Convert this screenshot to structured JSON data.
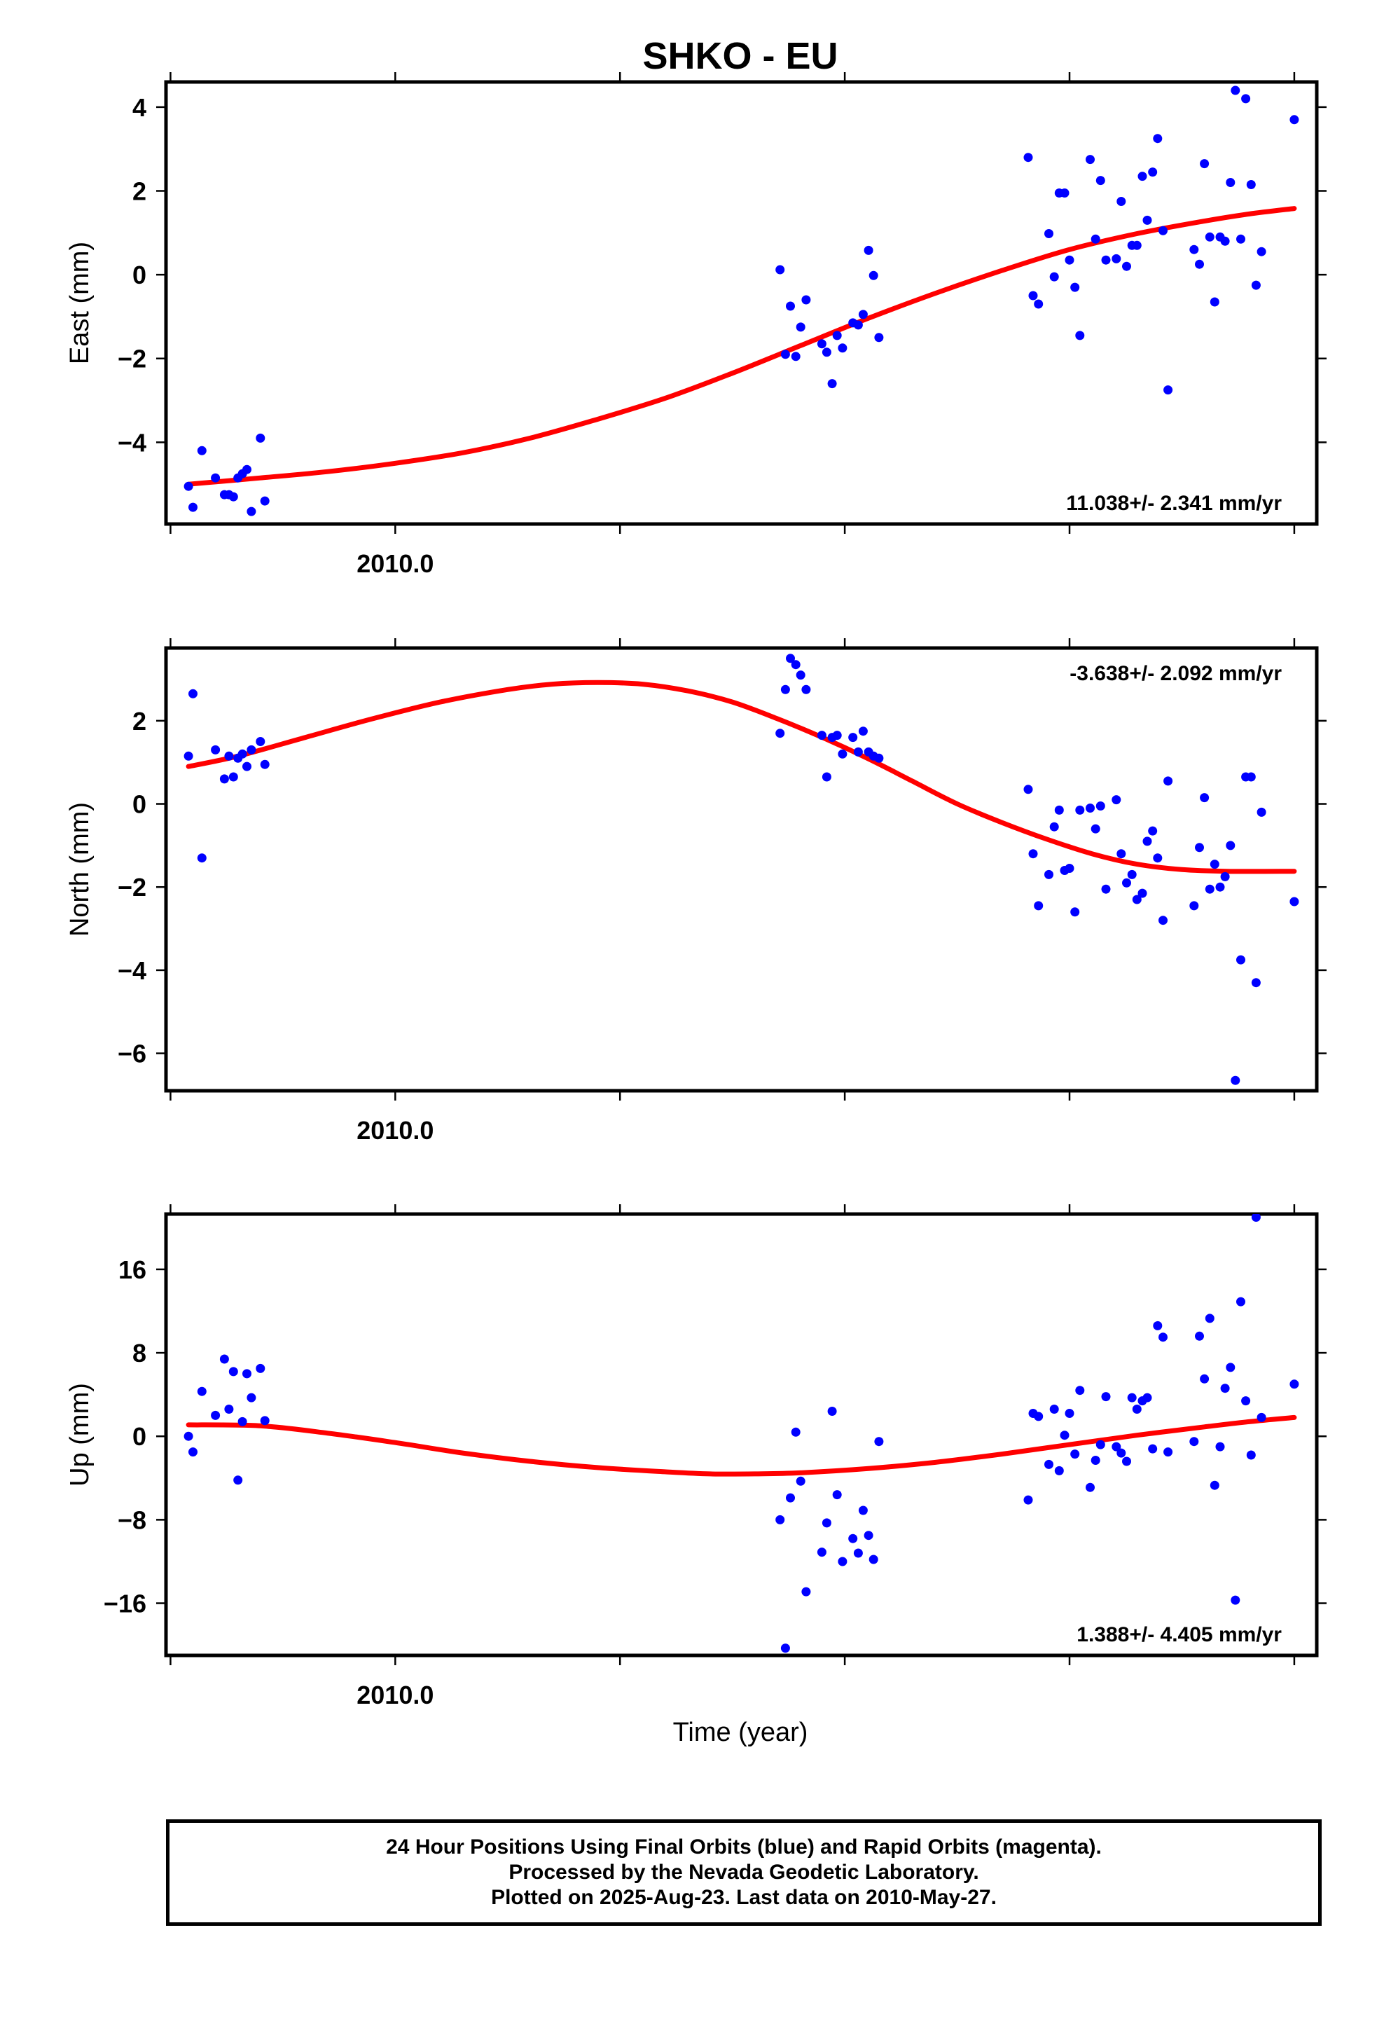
{
  "colors": {
    "points": "#0000ff",
    "fit": "#ff0000",
    "frame": "#000000"
  },
  "footer": {
    "lines": [
      "24 Hour Positions Using Final Orbits (blue) and Rapid Orbits (magenta).",
      "Processed by the Nevada Geodetic Laboratory.",
      "Plotted on 2025-Aug-23. Last data on 2010-May-27."
    ]
  },
  "chart_data": {
    "type": "scatter",
    "title": "SHKO - EU",
    "xlabel": "Time (year)",
    "x_tick_label": "2010.0",
    "x_tick_label_value": 2010.0,
    "xlim": [
      2009.949,
      2010.205
    ],
    "x_major_ticks": [
      2009.95,
      2010.0,
      2010.05,
      2010.1,
      2010.15,
      2010.2
    ],
    "grid": false,
    "panels": [
      {
        "id": "east",
        "ylabel": "East (mm)",
        "ylim": [
          -5.95,
          4.6
        ],
        "yticks": [
          -4,
          -2,
          0,
          2,
          4
        ],
        "ytick_labels": [
          "−4",
          "−2",
          "0",
          "2",
          "4"
        ],
        "rate_text": "11.038+/- 2.341 mm/yr",
        "rate_position": "bottom-right",
        "points": [
          [
            2009.954,
            -5.05
          ],
          [
            2009.955,
            -5.55
          ],
          [
            2009.957,
            -4.2
          ],
          [
            2009.96,
            -4.85
          ],
          [
            2009.962,
            -5.25
          ],
          [
            2009.963,
            -5.25
          ],
          [
            2009.964,
            -5.3
          ],
          [
            2009.965,
            -4.85
          ],
          [
            2009.966,
            -4.75
          ],
          [
            2009.967,
            -4.65
          ],
          [
            2009.968,
            -5.65
          ],
          [
            2009.97,
            -3.9
          ],
          [
            2009.971,
            -5.4
          ],
          [
            2010.0856,
            0.12
          ],
          [
            2010.0868,
            -1.9
          ],
          [
            2010.0879,
            -0.75
          ],
          [
            2010.0891,
            -1.95
          ],
          [
            2010.0902,
            -1.25
          ],
          [
            2010.0914,
            -0.6
          ],
          [
            2010.0949,
            -1.65
          ],
          [
            2010.096,
            -1.85
          ],
          [
            2010.0972,
            -2.6
          ],
          [
            2010.0983,
            -1.45
          ],
          [
            2010.0995,
            -1.75
          ],
          [
            2010.1018,
            -1.15
          ],
          [
            2010.103,
            -1.2
          ],
          [
            2010.1041,
            -0.95
          ],
          [
            2010.1053,
            0.58
          ],
          [
            2010.1064,
            -0.02
          ],
          [
            2010.1076,
            -1.5
          ],
          [
            2010.1408,
            2.8
          ],
          [
            2010.1419,
            -0.5
          ],
          [
            2010.1431,
            -0.7
          ],
          [
            2010.1454,
            0.98
          ],
          [
            2010.1466,
            -0.05
          ],
          [
            2010.1477,
            1.95
          ],
          [
            2010.1489,
            1.95
          ],
          [
            2010.15,
            0.35
          ],
          [
            2010.1512,
            -0.3
          ],
          [
            2010.1523,
            -1.45
          ],
          [
            2010.1546,
            2.75
          ],
          [
            2010.1558,
            0.85
          ],
          [
            2010.1569,
            2.25
          ],
          [
            2010.1581,
            0.35
          ],
          [
            2010.1604,
            0.38
          ],
          [
            2010.1615,
            1.75
          ],
          [
            2010.1627,
            0.2
          ],
          [
            2010.1639,
            0.7
          ],
          [
            2010.165,
            0.7
          ],
          [
            2010.1662,
            2.35
          ],
          [
            2010.1673,
            1.3
          ],
          [
            2010.1685,
            2.45
          ],
          [
            2010.1696,
            3.25
          ],
          [
            2010.1708,
            1.05
          ],
          [
            2010.1719,
            -2.75
          ],
          [
            2010.1777,
            0.6
          ],
          [
            2010.1789,
            0.25
          ],
          [
            2010.18,
            2.65
          ],
          [
            2010.1812,
            0.9
          ],
          [
            2010.1823,
            -0.65
          ],
          [
            2010.1835,
            0.9
          ],
          [
            2010.1846,
            0.8
          ],
          [
            2010.1858,
            2.2
          ],
          [
            2010.1869,
            4.4
          ],
          [
            2010.1881,
            0.85
          ],
          [
            2010.1892,
            4.2
          ],
          [
            2010.1904,
            2.15
          ],
          [
            2010.1915,
            -0.25
          ],
          [
            2010.1927,
            0.55
          ],
          [
            2010.2,
            3.7
          ]
        ],
        "fit": [
          [
            2009.954,
            -5.0
          ],
          [
            2009.97,
            -4.85
          ],
          [
            2009.985,
            -4.7
          ],
          [
            2010.0,
            -4.5
          ],
          [
            2010.015,
            -4.25
          ],
          [
            2010.03,
            -3.9
          ],
          [
            2010.045,
            -3.45
          ],
          [
            2010.06,
            -2.95
          ],
          [
            2010.075,
            -2.35
          ],
          [
            2010.09,
            -1.7
          ],
          [
            2010.105,
            -1.05
          ],
          [
            2010.12,
            -0.45
          ],
          [
            2010.135,
            0.1
          ],
          [
            2010.15,
            0.6
          ],
          [
            2010.165,
            0.98
          ],
          [
            2010.18,
            1.28
          ],
          [
            2010.19,
            1.45
          ],
          [
            2010.2,
            1.58
          ]
        ]
      },
      {
        "id": "north",
        "ylabel": "North (mm)",
        "ylim": [
          -6.9,
          3.75
        ],
        "yticks": [
          -6,
          -4,
          -2,
          0,
          2
        ],
        "ytick_labels": [
          "−6",
          "−4",
          "−2",
          "0",
          "2"
        ],
        "rate_text": "-3.638+/- 2.092 mm/yr",
        "rate_position": "top-right",
        "points": [
          [
            2009.954,
            1.15
          ],
          [
            2009.955,
            2.65
          ],
          [
            2009.957,
            -1.3
          ],
          [
            2009.96,
            1.3
          ],
          [
            2009.962,
            0.6
          ],
          [
            2009.963,
            1.15
          ],
          [
            2009.964,
            0.65
          ],
          [
            2009.965,
            1.1
          ],
          [
            2009.966,
            1.2
          ],
          [
            2009.967,
            0.9
          ],
          [
            2009.968,
            1.3
          ],
          [
            2009.97,
            1.5
          ],
          [
            2009.971,
            0.95
          ],
          [
            2010.0856,
            1.7
          ],
          [
            2010.0868,
            2.75
          ],
          [
            2010.0879,
            3.5
          ],
          [
            2010.0891,
            3.35
          ],
          [
            2010.0902,
            3.1
          ],
          [
            2010.0914,
            2.75
          ],
          [
            2010.0949,
            1.65
          ],
          [
            2010.096,
            0.65
          ],
          [
            2010.0972,
            1.6
          ],
          [
            2010.0983,
            1.65
          ],
          [
            2010.0995,
            1.2
          ],
          [
            2010.1018,
            1.6
          ],
          [
            2010.103,
            1.25
          ],
          [
            2010.1041,
            1.75
          ],
          [
            2010.1053,
            1.25
          ],
          [
            2010.1064,
            1.15
          ],
          [
            2010.1076,
            1.1
          ],
          [
            2010.1408,
            0.35
          ],
          [
            2010.1419,
            -1.2
          ],
          [
            2010.1431,
            -2.45
          ],
          [
            2010.1454,
            -1.7
          ],
          [
            2010.1466,
            -0.55
          ],
          [
            2010.1477,
            -0.15
          ],
          [
            2010.1489,
            -1.6
          ],
          [
            2010.15,
            -1.55
          ],
          [
            2010.1512,
            -2.6
          ],
          [
            2010.1523,
            -0.15
          ],
          [
            2010.1546,
            -0.1
          ],
          [
            2010.1558,
            -0.6
          ],
          [
            2010.1569,
            -0.05
          ],
          [
            2010.1581,
            -2.05
          ],
          [
            2010.1604,
            0.1
          ],
          [
            2010.1615,
            -1.2
          ],
          [
            2010.1627,
            -1.9
          ],
          [
            2010.1639,
            -1.7
          ],
          [
            2010.165,
            -2.3
          ],
          [
            2010.1662,
            -2.15
          ],
          [
            2010.1673,
            -0.9
          ],
          [
            2010.1685,
            -0.65
          ],
          [
            2010.1696,
            -1.3
          ],
          [
            2010.1708,
            -2.8
          ],
          [
            2010.1719,
            0.55
          ],
          [
            2010.1777,
            -2.45
          ],
          [
            2010.1789,
            -1.05
          ],
          [
            2010.18,
            0.15
          ],
          [
            2010.1812,
            -2.05
          ],
          [
            2010.1823,
            -1.45
          ],
          [
            2010.1835,
            -2.0
          ],
          [
            2010.1846,
            -1.75
          ],
          [
            2010.1858,
            -1.0
          ],
          [
            2010.1869,
            -6.65
          ],
          [
            2010.1881,
            -3.75
          ],
          [
            2010.1892,
            0.65
          ],
          [
            2010.1904,
            0.65
          ],
          [
            2010.1915,
            -4.3
          ],
          [
            2010.1927,
            -0.2
          ],
          [
            2010.2,
            -2.35
          ]
        ],
        "fit": [
          [
            2009.954,
            0.9
          ],
          [
            2009.965,
            1.15
          ],
          [
            2009.98,
            1.6
          ],
          [
            2009.995,
            2.05
          ],
          [
            2010.01,
            2.45
          ],
          [
            2010.025,
            2.75
          ],
          [
            2010.035,
            2.88
          ],
          [
            2010.045,
            2.92
          ],
          [
            2010.055,
            2.88
          ],
          [
            2010.065,
            2.72
          ],
          [
            2010.075,
            2.45
          ],
          [
            2010.085,
            2.05
          ],
          [
            2010.095,
            1.6
          ],
          [
            2010.105,
            1.1
          ],
          [
            2010.115,
            0.55
          ],
          [
            2010.125,
            0.0
          ],
          [
            2010.135,
            -0.45
          ],
          [
            2010.145,
            -0.85
          ],
          [
            2010.155,
            -1.2
          ],
          [
            2010.165,
            -1.45
          ],
          [
            2010.175,
            -1.58
          ],
          [
            2010.185,
            -1.62
          ],
          [
            2010.2,
            -1.62
          ]
        ]
      },
      {
        "id": "up",
        "ylabel": "Up (mm)",
        "ylim": [
          -21.0,
          21.3
        ],
        "yticks": [
          -16,
          -8,
          0,
          8,
          16
        ],
        "ytick_labels": [
          "−16",
          "−8",
          "0",
          "8",
          "16"
        ],
        "rate_text": "1.388+/- 4.405 mm/yr",
        "rate_position": "bottom-right",
        "points": [
          [
            2009.954,
            0.0
          ],
          [
            2009.955,
            -1.5
          ],
          [
            2009.957,
            4.3
          ],
          [
            2009.96,
            2.0
          ],
          [
            2009.962,
            7.4
          ],
          [
            2009.963,
            2.6
          ],
          [
            2009.964,
            6.2
          ],
          [
            2009.965,
            -4.2
          ],
          [
            2009.966,
            1.4
          ],
          [
            2009.967,
            6.0
          ],
          [
            2009.968,
            3.7
          ],
          [
            2009.97,
            6.5
          ],
          [
            2009.971,
            1.5
          ],
          [
            2010.0856,
            -8.0
          ],
          [
            2010.0868,
            -20.3
          ],
          [
            2010.0879,
            -5.9
          ],
          [
            2010.0891,
            0.4
          ],
          [
            2010.0902,
            -4.3
          ],
          [
            2010.0914,
            -14.9
          ],
          [
            2010.0949,
            -11.1
          ],
          [
            2010.096,
            -8.3
          ],
          [
            2010.0972,
            2.4
          ],
          [
            2010.0983,
            -5.6
          ],
          [
            2010.0995,
            -12.0
          ],
          [
            2010.1018,
            -9.8
          ],
          [
            2010.103,
            -11.2
          ],
          [
            2010.1041,
            -7.1
          ],
          [
            2010.1053,
            -9.5
          ],
          [
            2010.1064,
            -11.8
          ],
          [
            2010.1076,
            -0.5
          ],
          [
            2010.1408,
            -6.1
          ],
          [
            2010.1419,
            2.2
          ],
          [
            2010.1431,
            1.9
          ],
          [
            2010.1454,
            -2.7
          ],
          [
            2010.1466,
            2.6
          ],
          [
            2010.1477,
            -3.3
          ],
          [
            2010.1489,
            0.1
          ],
          [
            2010.15,
            2.2
          ],
          [
            2010.1512,
            -1.7
          ],
          [
            2010.1523,
            4.4
          ],
          [
            2010.1546,
            -4.9
          ],
          [
            2010.1558,
            -2.3
          ],
          [
            2010.1569,
            -0.8
          ],
          [
            2010.1581,
            3.8
          ],
          [
            2010.1604,
            -1.0
          ],
          [
            2010.1615,
            -1.6
          ],
          [
            2010.1627,
            -2.4
          ],
          [
            2010.1639,
            3.7
          ],
          [
            2010.165,
            2.6
          ],
          [
            2010.1662,
            3.4
          ],
          [
            2010.1673,
            3.7
          ],
          [
            2010.1685,
            -1.2
          ],
          [
            2010.1696,
            10.6
          ],
          [
            2010.1708,
            9.5
          ],
          [
            2010.1719,
            -1.5
          ],
          [
            2010.1777,
            -0.5
          ],
          [
            2010.1789,
            9.6
          ],
          [
            2010.18,
            5.5
          ],
          [
            2010.1812,
            11.3
          ],
          [
            2010.1823,
            -4.7
          ],
          [
            2010.1835,
            -1.0
          ],
          [
            2010.1846,
            4.6
          ],
          [
            2010.1858,
            6.6
          ],
          [
            2010.1869,
            -15.7
          ],
          [
            2010.1881,
            12.9
          ],
          [
            2010.1892,
            3.4
          ],
          [
            2010.1904,
            -1.8
          ],
          [
            2010.1915,
            21.0
          ],
          [
            2010.1927,
            1.8
          ],
          [
            2010.2,
            5.0
          ]
        ],
        "fit": [
          [
            2009.954,
            1.1
          ],
          [
            2009.97,
            1.0
          ],
          [
            2009.985,
            0.3
          ],
          [
            2010.0,
            -0.6
          ],
          [
            2010.015,
            -1.6
          ],
          [
            2010.03,
            -2.4
          ],
          [
            2010.045,
            -3.0
          ],
          [
            2010.06,
            -3.4
          ],
          [
            2010.07,
            -3.6
          ],
          [
            2010.08,
            -3.6
          ],
          [
            2010.09,
            -3.5
          ],
          [
            2010.105,
            -3.1
          ],
          [
            2010.12,
            -2.5
          ],
          [
            2010.135,
            -1.7
          ],
          [
            2010.15,
            -0.8
          ],
          [
            2010.165,
            0.1
          ],
          [
            2010.18,
            0.9
          ],
          [
            2010.19,
            1.4
          ],
          [
            2010.2,
            1.8
          ]
        ]
      }
    ]
  }
}
